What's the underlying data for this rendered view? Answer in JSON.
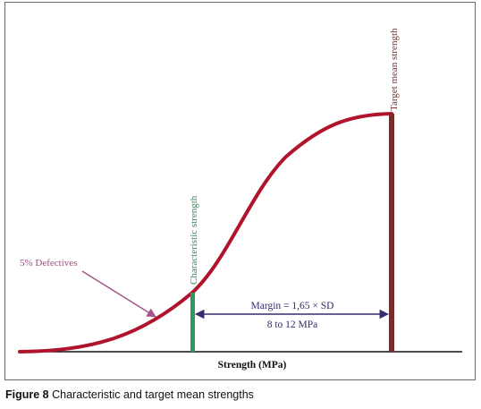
{
  "diagram": {
    "labels": {
      "target_mean_strength": "Target mean strength",
      "characteristic_strength": "Characteristic strength",
      "defectives": "5% Defectives",
      "margin_line1": "Margin = 1,65 × SD",
      "margin_line2": "8 to 12 MPa",
      "x_axis": "Strength (MPa)"
    },
    "colors": {
      "curve": "#b0142d",
      "target_bar": "#7d2a2a",
      "characteristic_bar": "#2e9a62",
      "characteristic_text": "#2e8a58",
      "margin_arrow": "#3a2a6e",
      "margin_text": "#2e2a6a",
      "defectives_arrow": "#a4558a",
      "defectives_text": "#9a4c86",
      "axis": "#111111"
    }
  },
  "caption": {
    "figure_label": "Figure 8",
    "text": " Characteristic and target mean strengths"
  }
}
